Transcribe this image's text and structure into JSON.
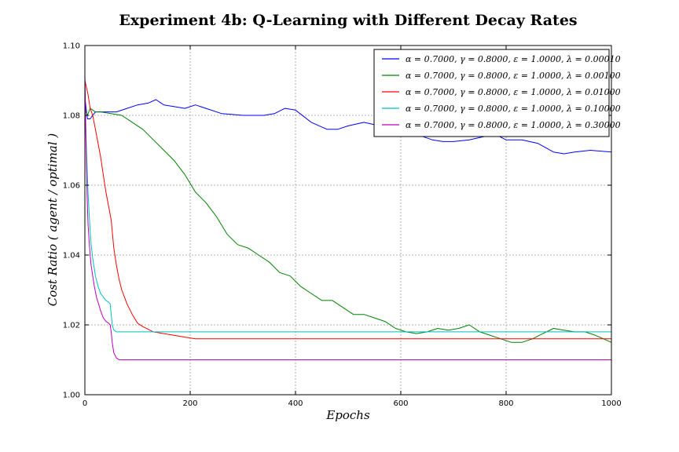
{
  "chart_data": {
    "type": "line",
    "title": "Experiment 4b: Q-Learning with Different Decay Rates",
    "xlabel": "Epochs",
    "ylabel": "Cost Ratio ( agent / optimal )",
    "xlim": [
      0,
      1000
    ],
    "ylim": [
      1.0,
      1.1
    ],
    "xticks": [
      "0",
      "200",
      "400",
      "600",
      "800",
      "1000"
    ],
    "yticks": [
      "1.00",
      "1.02",
      "1.04",
      "1.06",
      "1.08",
      "1.10"
    ],
    "grid": true,
    "legend_position": "top-right",
    "series": [
      {
        "name": "α = 0.7000, γ = 0.8000, ε = 1.0000, λ = 0.00010",
        "color": "#0000ff",
        "x": [
          0,
          5,
          10,
          20,
          40,
          60,
          80,
          100,
          120,
          135,
          150,
          170,
          190,
          210,
          230,
          260,
          300,
          340,
          360,
          380,
          400,
          430,
          460,
          480,
          500,
          530,
          560,
          600,
          620,
          640,
          660,
          680,
          700,
          730,
          760,
          780,
          800,
          830,
          860,
          890,
          910,
          930,
          960,
          1000
        ],
        "y": [
          1.085,
          1.079,
          1.079,
          1.081,
          1.081,
          1.081,
          1.082,
          1.083,
          1.0835,
          1.0845,
          1.083,
          1.0825,
          1.082,
          1.083,
          1.082,
          1.0805,
          1.08,
          1.08,
          1.0805,
          1.082,
          1.0815,
          1.078,
          1.076,
          1.076,
          1.077,
          1.078,
          1.077,
          1.078,
          1.076,
          1.074,
          1.073,
          1.0725,
          1.0725,
          1.073,
          1.074,
          1.0745,
          1.073,
          1.073,
          1.072,
          1.0695,
          1.069,
          1.0695,
          1.07,
          1.0695
        ]
      },
      {
        "name": "α = 0.7000, γ = 0.8000, ε = 1.0000, λ = 0.00100",
        "color": "#008000",
        "x": [
          0,
          5,
          10,
          20,
          30,
          50,
          70,
          90,
          110,
          130,
          150,
          170,
          190,
          210,
          230,
          250,
          270,
          290,
          310,
          330,
          350,
          370,
          390,
          410,
          430,
          450,
          470,
          490,
          510,
          530,
          550,
          570,
          590,
          610,
          630,
          650,
          670,
          690,
          710,
          730,
          750,
          770,
          790,
          810,
          830,
          850,
          870,
          890,
          910,
          930,
          950,
          970,
          1000
        ],
        "y": [
          1.082,
          1.08,
          1.082,
          1.081,
          1.081,
          1.0805,
          1.08,
          1.078,
          1.076,
          1.073,
          1.07,
          1.067,
          1.063,
          1.058,
          1.055,
          1.051,
          1.046,
          1.043,
          1.042,
          1.04,
          1.038,
          1.035,
          1.034,
          1.031,
          1.029,
          1.027,
          1.027,
          1.025,
          1.023,
          1.023,
          1.022,
          1.021,
          1.019,
          1.018,
          1.0175,
          1.018,
          1.019,
          1.0185,
          1.019,
          1.02,
          1.018,
          1.017,
          1.016,
          1.015,
          1.015,
          1.016,
          1.0175,
          1.019,
          1.0185,
          1.018,
          1.018,
          1.017,
          1.015
        ]
      },
      {
        "name": "α = 0.7000, γ = 0.8000, ε = 1.0000, λ = 0.01000",
        "color": "#ff0000",
        "x": [
          0,
          3,
          6,
          10,
          15,
          20,
          25,
          30,
          35,
          40,
          45,
          50,
          55,
          60,
          65,
          70,
          75,
          80,
          90,
          100,
          110,
          130,
          150,
          170,
          190,
          210,
          240,
          300,
          400,
          600,
          800,
          1000
        ],
        "y": [
          1.09,
          1.088,
          1.086,
          1.082,
          1.08,
          1.076,
          1.072,
          1.068,
          1.063,
          1.058,
          1.054,
          1.05,
          1.042,
          1.037,
          1.033,
          1.03,
          1.028,
          1.026,
          1.023,
          1.0205,
          1.0195,
          1.018,
          1.0175,
          1.017,
          1.0165,
          1.016,
          1.016,
          1.016,
          1.016,
          1.016,
          1.016,
          1.016
        ]
      },
      {
        "name": "α = 0.7000, γ = 0.8000, ε = 1.0000, λ = 0.10000",
        "color": "#00bfbf",
        "x": [
          0,
          2,
          4,
          6,
          8,
          10,
          12,
          15,
          18,
          20,
          25,
          30,
          35,
          40,
          45,
          48,
          50,
          52,
          55,
          60,
          70,
          100,
          200,
          1000
        ],
        "y": [
          1.088,
          1.075,
          1.066,
          1.058,
          1.052,
          1.047,
          1.043,
          1.039,
          1.036,
          1.034,
          1.031,
          1.029,
          1.028,
          1.027,
          1.0265,
          1.026,
          1.023,
          1.02,
          1.0185,
          1.018,
          1.018,
          1.018,
          1.018,
          1.018
        ]
      },
      {
        "name": "α = 0.7000, γ = 0.8000, ε = 1.0000, λ = 0.30000",
        "color": "#bf00bf",
        "x": [
          0,
          2,
          4,
          6,
          8,
          10,
          12,
          15,
          18,
          22,
          26,
          30,
          35,
          40,
          45,
          48,
          50,
          52,
          55,
          60,
          65,
          70,
          100,
          1000
        ],
        "y": [
          1.092,
          1.074,
          1.058,
          1.049,
          1.044,
          1.04,
          1.037,
          1.034,
          1.031,
          1.028,
          1.026,
          1.024,
          1.022,
          1.021,
          1.0205,
          1.02,
          1.018,
          1.015,
          1.012,
          1.0105,
          1.01,
          1.01,
          1.01,
          1.01
        ]
      }
    ]
  }
}
